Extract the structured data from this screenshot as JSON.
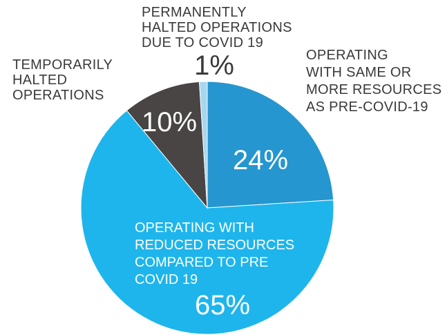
{
  "chart_data": {
    "type": "pie",
    "title": "",
    "slices": [
      {
        "label_lines": [
          "OPERATING",
          "WITH SAME OR",
          "MORE RESOURCES",
          "AS PRE-COVID-19"
        ],
        "value": 24,
        "value_label": "24%",
        "color": "#2596d0"
      },
      {
        "label_lines": [
          "OPERATING WITH",
          "REDUCED RESOURCES",
          "COMPARED TO PRE",
          "COVID 19"
        ],
        "value": 65,
        "value_label": "65%",
        "color": "#1eb5ec"
      },
      {
        "label_lines": [
          "TEMPORARILY",
          "HALTED",
          "OPERATIONS"
        ],
        "value": 10,
        "value_label": "10%",
        "color": "#4a4545"
      },
      {
        "label_lines": [
          "PERMANENTLY",
          "HALTED OPERATIONS",
          "DUE TO COVID  19"
        ],
        "value": 1,
        "value_label": "1%",
        "color": "#a5d8ee"
      }
    ]
  }
}
